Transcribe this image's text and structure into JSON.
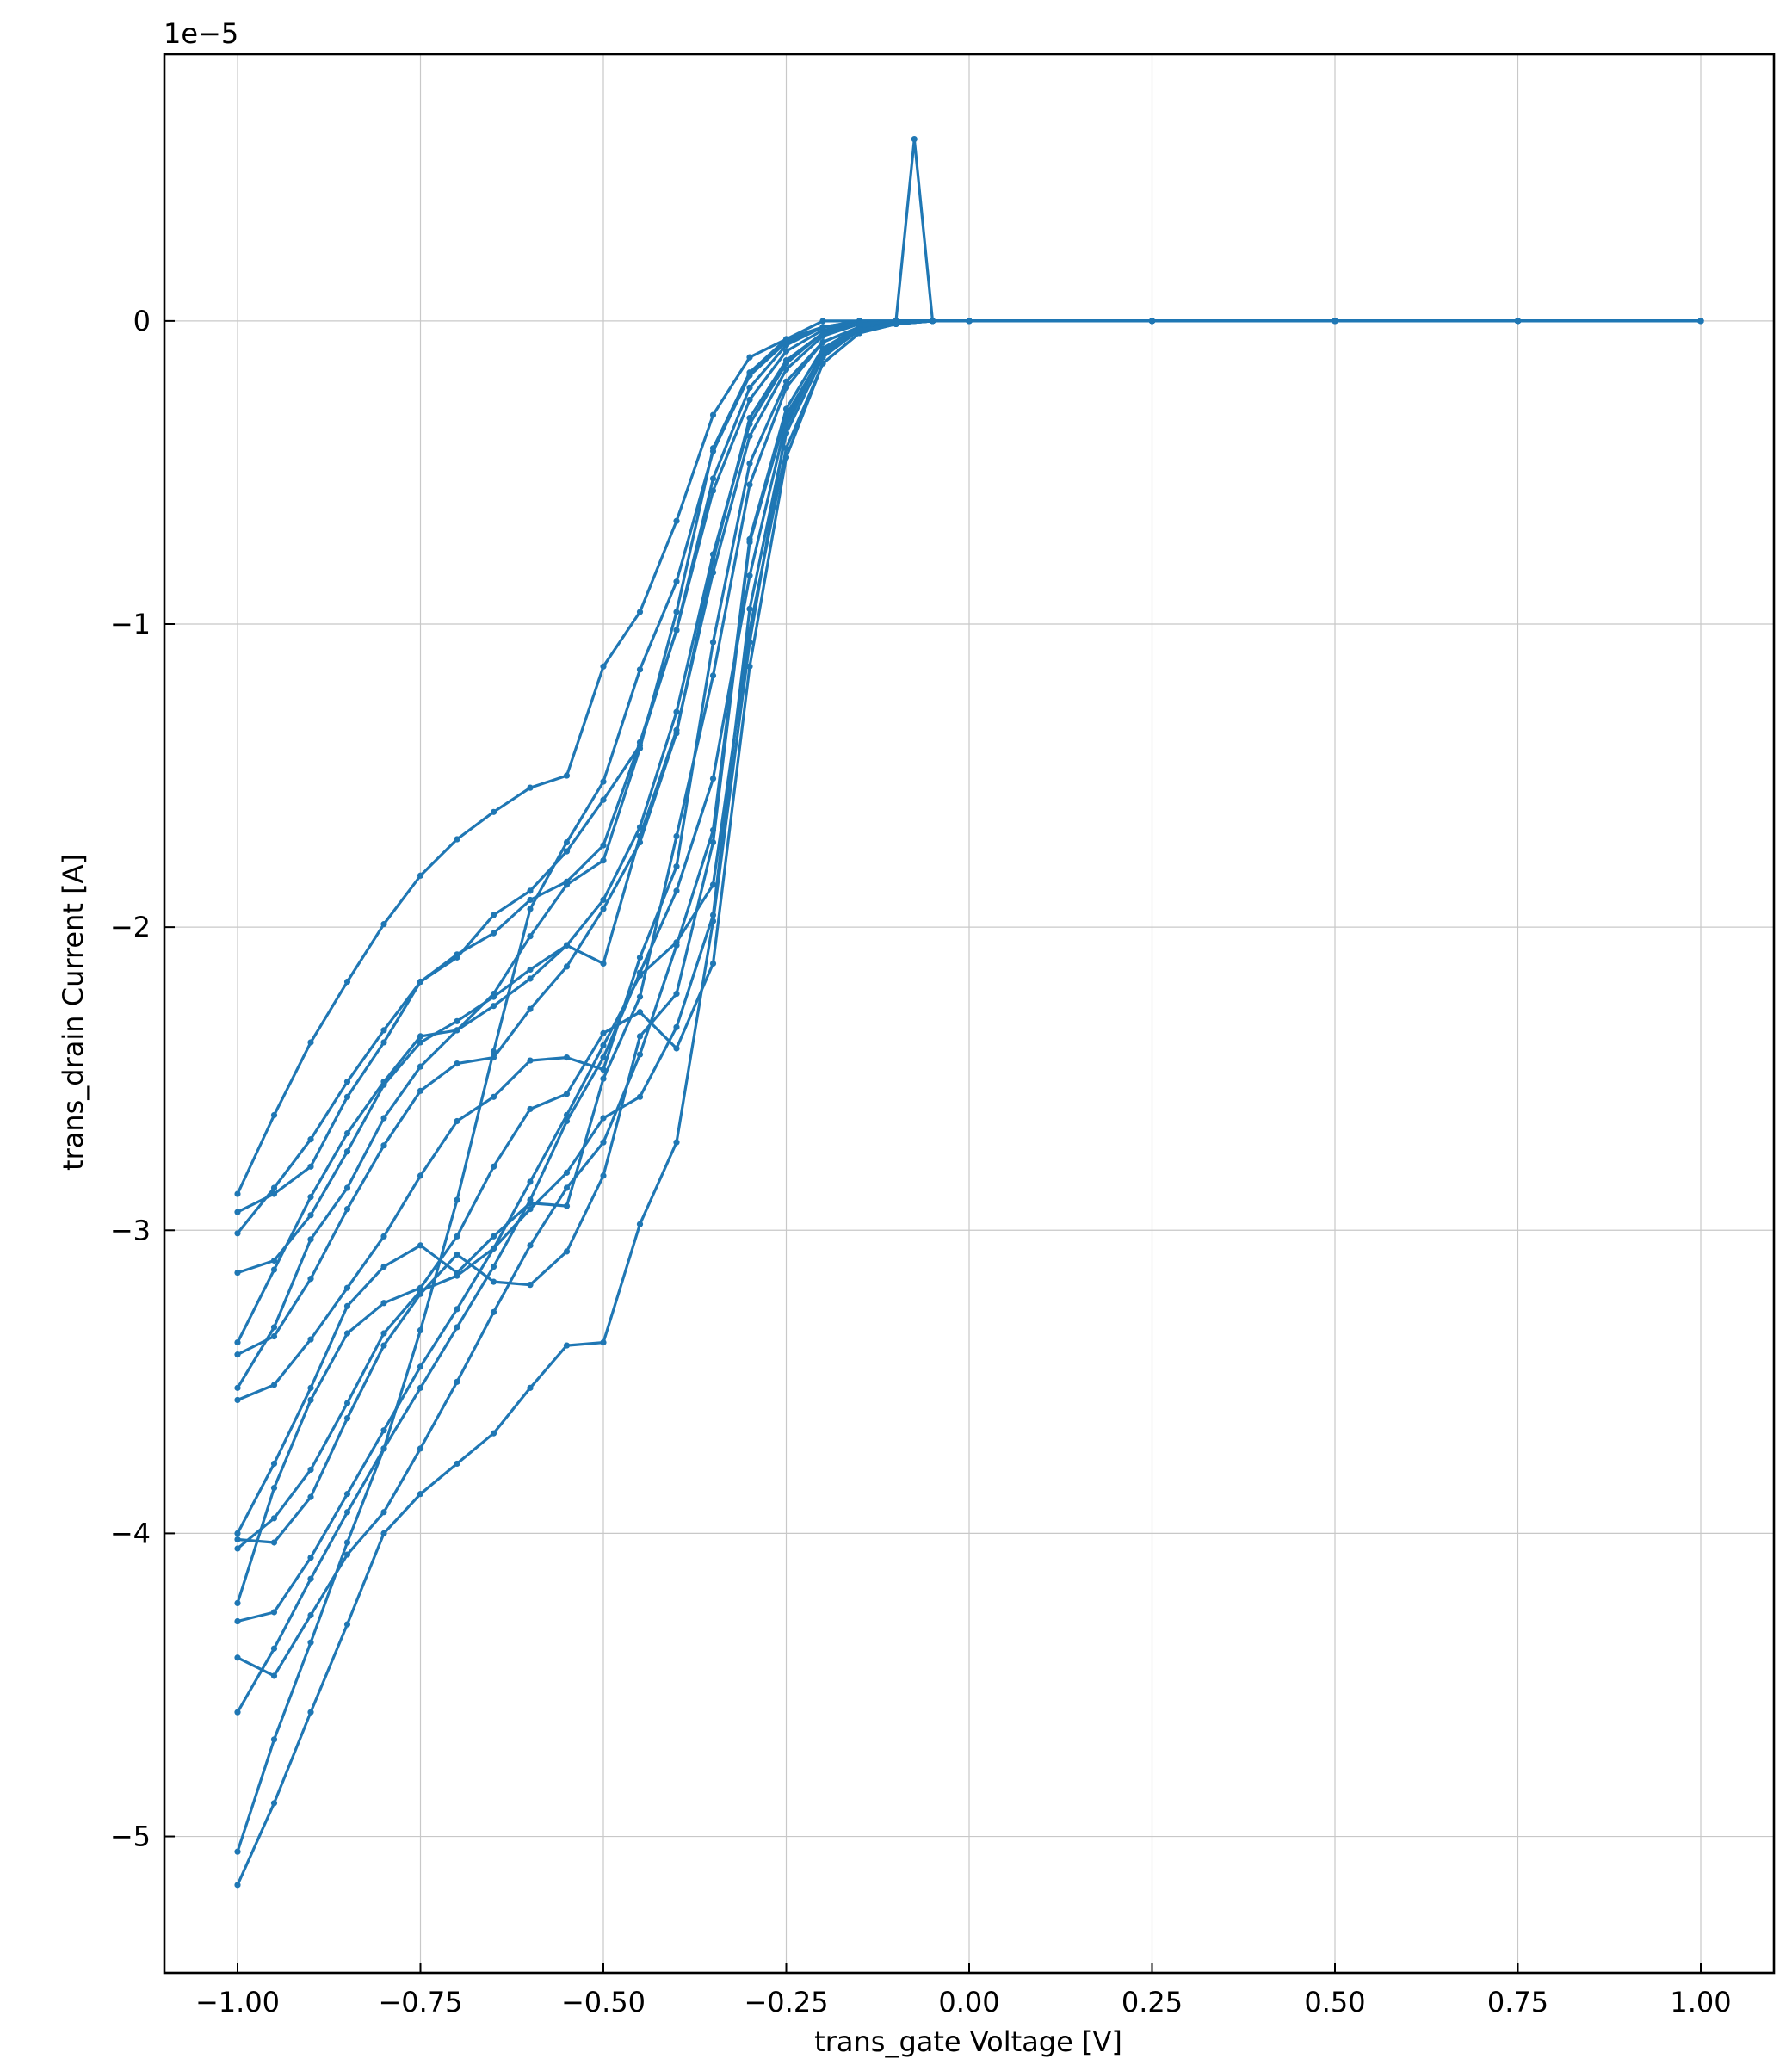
{
  "chart_data": {
    "type": "line",
    "title": "",
    "xlabel": "trans_gate Voltage [V]",
    "ylabel": "trans_drain Current [A]",
    "y_scale_label": "1e−5",
    "xlim": [
      -1.1,
      1.1
    ],
    "ylim": [
      -5.45,
      0.88
    ],
    "grid": true,
    "color": "#1f77b4",
    "marker": "dot",
    "x_ticks": [
      -1.0,
      -0.75,
      -0.5,
      -0.25,
      0.0,
      0.25,
      0.5,
      0.75,
      1.0
    ],
    "x_tick_labels": [
      "−1.00",
      "−0.75",
      "−0.50",
      "−0.25",
      "0.00",
      "0.25",
      "0.50",
      "0.75",
      "1.00"
    ],
    "y_ticks": [
      0,
      -1,
      -2,
      -3,
      -4,
      -5
    ],
    "y_tick_labels": [
      "0",
      "−1",
      "−2",
      "−3",
      "−4",
      "−5"
    ],
    "series": [
      {
        "name": "",
        "x": [
          -1.0,
          -0.95,
          -0.9,
          -0.85,
          -0.8,
          -0.75,
          -0.7,
          -0.65,
          -0.6,
          -0.55,
          -0.5,
          -0.45,
          -0.4,
          -0.35,
          -0.3,
          -0.25,
          -0.2,
          -0.15,
          -0.1,
          -0.075,
          -0.05,
          0.0,
          0.25,
          0.5,
          0.75,
          1.0
        ],
        "y": [
          -2.88,
          -2.62,
          -2.38,
          -2.18,
          -1.99,
          -1.83,
          -1.71,
          -1.62,
          -1.54,
          -1.5,
          -1.14,
          -0.96,
          -0.66,
          -0.31,
          -0.12,
          -0.06,
          0.0,
          0.0,
          0.0,
          0.6,
          0.0,
          0.0,
          0.0,
          0.0,
          0.0,
          0.0
        ]
      },
      {
        "name": "",
        "x": [
          -1.0,
          -0.95,
          -0.9,
          -0.85,
          -0.8,
          -0.75,
          -0.7,
          -0.65,
          -0.6,
          -0.55,
          -0.5,
          -0.45,
          -0.4,
          -0.35,
          -0.3,
          -0.25,
          -0.2,
          -0.15,
          -0.1,
          -0.05,
          0.0,
          0.25,
          0.5,
          0.75,
          1.0
        ],
        "y": [
          -2.94,
          -2.88,
          -2.79,
          -2.56,
          -2.38,
          -2.18,
          -2.09,
          -2.02,
          -1.91,
          -1.85,
          -1.73,
          -1.39,
          -1.02,
          -0.52,
          -0.22,
          -0.08,
          -0.02,
          0.0,
          0.0,
          0.0,
          0.0,
          0.0,
          0.0,
          0.0,
          0.0
        ]
      },
      {
        "name": "",
        "x": [
          -1.0,
          -0.95,
          -0.9,
          -0.85,
          -0.8,
          -0.75,
          -0.7,
          -0.65,
          -0.6,
          -0.55,
          -0.5,
          -0.45,
          -0.4,
          -0.35,
          -0.3,
          -0.25,
          -0.2,
          -0.15,
          -0.1,
          -0.05,
          0.0,
          0.25,
          0.5,
          0.75,
          1.0
        ],
        "y": [
          -3.01,
          -2.86,
          -2.7,
          -2.51,
          -2.34,
          -2.18,
          -2.1,
          -1.96,
          -1.88,
          -1.75,
          -1.58,
          -1.4,
          -1.02,
          -0.56,
          -0.26,
          -0.1,
          -0.03,
          -0.01,
          0.0,
          0.0,
          0.0,
          0.0,
          0.0,
          0.0,
          0.0
        ]
      },
      {
        "name": "",
        "x": [
          -1.0,
          -0.95,
          -0.9,
          -0.85,
          -0.8,
          -0.75,
          -0.7,
          -0.65,
          -0.6,
          -0.55,
          -0.5,
          -0.45,
          -0.4,
          -0.35,
          -0.3,
          -0.25,
          -0.2,
          -0.15,
          -0.1,
          -0.05,
          0.0,
          0.25,
          0.5,
          0.75,
          1.0
        ],
        "y": [
          -3.14,
          -3.1,
          -2.95,
          -2.74,
          -2.52,
          -2.38,
          -2.31,
          -2.23,
          -2.14,
          -2.06,
          -1.91,
          -1.67,
          -1.29,
          -0.77,
          -0.34,
          -0.14,
          -0.04,
          -0.01,
          0.0,
          0.0,
          0.0,
          0.0,
          0.0,
          0.0,
          0.0
        ]
      },
      {
        "name": "",
        "x": [
          -1.0,
          -0.95,
          -0.9,
          -0.85,
          -0.8,
          -0.75,
          -0.7,
          -0.65,
          -0.6,
          -0.55,
          -0.5,
          -0.45,
          -0.4,
          -0.35,
          -0.3,
          -0.25,
          -0.2,
          -0.15,
          -0.1,
          -0.05,
          0.0,
          0.25,
          0.5,
          0.75,
          1.0
        ],
        "y": [
          -3.37,
          -3.13,
          -2.89,
          -2.68,
          -2.51,
          -2.36,
          -2.34,
          -2.22,
          -2.03,
          -1.86,
          -1.78,
          -1.41,
          -0.96,
          -0.42,
          -0.17,
          -0.06,
          -0.02,
          0.0,
          0.0,
          0.0,
          0.0,
          0.0,
          0.0,
          0.0,
          0.0
        ]
      },
      {
        "name": "",
        "x": [
          -1.0,
          -0.95,
          -0.9,
          -0.85,
          -0.8,
          -0.75,
          -0.7,
          -0.65,
          -0.6,
          -0.55,
          -0.5,
          -0.45,
          -0.4,
          -0.35,
          -0.3,
          -0.25,
          -0.2,
          -0.15,
          -0.1,
          -0.05,
          0.0,
          0.25,
          0.5,
          0.75,
          1.0
        ],
        "y": [
          -3.41,
          -3.35,
          -3.16,
          -2.93,
          -2.72,
          -2.54,
          -2.45,
          -2.43,
          -2.27,
          -2.13,
          -1.94,
          -1.72,
          -1.36,
          -0.79,
          -0.32,
          -0.13,
          -0.04,
          -0.01,
          0.0,
          0.0,
          0.0,
          0.0,
          0.0,
          0.0,
          0.0
        ]
      },
      {
        "name": "",
        "x": [
          -1.0,
          -0.95,
          -0.9,
          -0.85,
          -0.8,
          -0.75,
          -0.7,
          -0.65,
          -0.6,
          -0.55,
          -0.5,
          -0.45,
          -0.4,
          -0.35,
          -0.3,
          -0.25,
          -0.2,
          -0.15,
          -0.1,
          -0.05,
          0.0,
          0.25,
          0.5,
          0.75,
          1.0
        ],
        "y": [
          -3.52,
          -3.32,
          -3.03,
          -2.86,
          -2.63,
          -2.46,
          -2.34,
          -2.26,
          -2.17,
          -2.06,
          -2.12,
          -1.7,
          -1.35,
          -0.83,
          -0.38,
          -0.16,
          -0.05,
          -0.01,
          0.0,
          0.0,
          0.0,
          0.0,
          0.0,
          0.0,
          0.0
        ]
      },
      {
        "name": "",
        "x": [
          -1.0,
          -0.95,
          -0.9,
          -0.85,
          -0.8,
          -0.75,
          -0.7,
          -0.65,
          -0.6,
          -0.55,
          -0.5,
          -0.45,
          -0.4,
          -0.35,
          -0.3,
          -0.25,
          -0.2,
          -0.15,
          -0.1,
          -0.05,
          0.0,
          0.25,
          0.5,
          0.75,
          1.0
        ],
        "y": [
          -3.56,
          -3.51,
          -3.36,
          -3.19,
          -3.02,
          -2.82,
          -2.64,
          -2.56,
          -2.44,
          -2.43,
          -2.47,
          -2.1,
          -1.8,
          -1.06,
          -0.47,
          -0.2,
          -0.07,
          -0.02,
          0.0,
          0.0,
          0.0,
          0.0,
          0.0,
          0.0,
          0.0
        ]
      },
      {
        "name": "",
        "x": [
          -1.0,
          -0.95,
          -0.9,
          -0.85,
          -0.8,
          -0.75,
          -0.7,
          -0.65,
          -0.6,
          -0.55,
          -0.5,
          -0.45,
          -0.4,
          -0.35,
          -0.3,
          -0.25,
          -0.2,
          -0.15,
          -0.1,
          -0.05,
          0.0,
          0.25,
          0.5,
          0.75,
          1.0
        ],
        "y": [
          -4.0,
          -3.77,
          -3.52,
          -3.25,
          -3.12,
          -3.05,
          -3.14,
          -3.02,
          -2.91,
          -2.92,
          -2.5,
          -2.23,
          -1.7,
          -1.17,
          -0.54,
          -0.22,
          -0.07,
          -0.02,
          0.0,
          0.0,
          0.0,
          0.0,
          0.0,
          0.0,
          0.0
        ]
      },
      {
        "name": "",
        "x": [
          -1.0,
          -0.95,
          -0.9,
          -0.85,
          -0.8,
          -0.75,
          -0.7,
          -0.65,
          -0.6,
          -0.55,
          -0.5,
          -0.45,
          -0.4,
          -0.35,
          -0.3,
          -0.25,
          -0.2,
          -0.15,
          -0.1,
          -0.05,
          0.0,
          0.25,
          0.5,
          0.75,
          1.0
        ],
        "y": [
          -4.02,
          -4.03,
          -3.88,
          -3.62,
          -3.38,
          -3.21,
          -3.08,
          -3.17,
          -3.18,
          -3.07,
          -2.82,
          -2.36,
          -2.22,
          -1.72,
          -0.73,
          -0.31,
          -0.11,
          -0.03,
          -0.01,
          0.0,
          0.0,
          0.0,
          0.0,
          0.0,
          0.0
        ]
      },
      {
        "name": "",
        "x": [
          -1.0,
          -0.95,
          -0.9,
          -0.85,
          -0.8,
          -0.75,
          -0.7,
          -0.65,
          -0.6,
          -0.55,
          -0.5,
          -0.45,
          -0.4,
          -0.35,
          -0.3,
          -0.25,
          -0.2,
          -0.15,
          -0.1,
          -0.05,
          0.0,
          0.25,
          0.5,
          0.75,
          1.0
        ],
        "y": [
          -4.05,
          -3.95,
          -3.79,
          -3.57,
          -3.34,
          -3.2,
          -3.15,
          -3.06,
          -2.93,
          -2.81,
          -2.63,
          -2.56,
          -2.33,
          -1.96,
          -0.95,
          -0.37,
          -0.12,
          -0.03,
          -0.01,
          0.0,
          0.0,
          0.0,
          0.0,
          0.0,
          0.0
        ]
      },
      {
        "name": "",
        "x": [
          -1.0,
          -0.95,
          -0.9,
          -0.85,
          -0.8,
          -0.75,
          -0.7,
          -0.65,
          -0.6,
          -0.55,
          -0.5,
          -0.45,
          -0.4,
          -0.35,
          -0.3,
          -0.25,
          -0.2,
          -0.15,
          -0.1,
          -0.05,
          0.0,
          0.25,
          0.5,
          0.75,
          1.0
        ],
        "y": [
          -4.23,
          -3.85,
          -3.56,
          -3.34,
          -3.24,
          -3.19,
          -3.02,
          -2.79,
          -2.6,
          -2.55,
          -2.35,
          -2.28,
          -2.4,
          -2.12,
          -1.14,
          -0.45,
          -0.14,
          -0.04,
          -0.01,
          0.0,
          0.0,
          0.0,
          0.0,
          0.0,
          0.0
        ]
      },
      {
        "name": "",
        "x": [
          -1.0,
          -0.95,
          -0.9,
          -0.85,
          -0.8,
          -0.75,
          -0.7,
          -0.65,
          -0.6,
          -0.55,
          -0.5,
          -0.45,
          -0.4,
          -0.35,
          -0.3,
          -0.25,
          -0.2,
          -0.15,
          -0.1,
          -0.05,
          0.0,
          0.25,
          0.5,
          0.75,
          1.0
        ],
        "y": [
          -4.29,
          -4.26,
          -4.08,
          -3.87,
          -3.66,
          -3.45,
          -3.26,
          -3.06,
          -2.84,
          -2.62,
          -2.39,
          -2.16,
          -2.05,
          -1.86,
          -1.02,
          -0.42,
          -0.14,
          -0.04,
          -0.01,
          0.0,
          0.0,
          0.0,
          0.0,
          0.0,
          0.0
        ]
      },
      {
        "name": "",
        "x": [
          -1.0,
          -0.95,
          -0.9,
          -0.85,
          -0.8,
          -0.75,
          -0.7,
          -0.65,
          -0.6,
          -0.55,
          -0.5,
          -0.45,
          -0.4,
          -0.35,
          -0.3,
          -0.25,
          -0.2,
          -0.15,
          -0.1,
          -0.05,
          0.0,
          0.25,
          0.5,
          0.75,
          1.0
        ],
        "y": [
          -4.41,
          -4.47,
          -4.27,
          -4.07,
          -3.93,
          -3.72,
          -3.5,
          -3.27,
          -3.05,
          -2.86,
          -2.71,
          -2.42,
          -2.06,
          -1.68,
          -0.72,
          -0.29,
          -0.09,
          -0.02,
          0.0,
          0.0,
          0.0,
          0.0,
          0.0,
          0.0,
          0.0
        ]
      },
      {
        "name": "",
        "x": [
          -1.0,
          -0.95,
          -0.9,
          -0.85,
          -0.8,
          -0.75,
          -0.7,
          -0.65,
          -0.6,
          -0.55,
          -0.5,
          -0.45,
          -0.4,
          -0.35,
          -0.3,
          -0.25,
          -0.2,
          -0.15,
          -0.1,
          -0.05,
          0.0,
          0.25,
          0.5,
          0.75,
          1.0
        ],
        "y": [
          -4.59,
          -4.38,
          -4.15,
          -3.93,
          -3.72,
          -3.52,
          -3.32,
          -3.12,
          -2.9,
          -2.64,
          -2.43,
          -2.15,
          -1.88,
          -1.51,
          -0.84,
          -0.33,
          -0.1,
          -0.03,
          0.0,
          0.0,
          0.0,
          0.0,
          0.0,
          0.0,
          0.0
        ]
      },
      {
        "name": "",
        "x": [
          -1.0,
          -0.95,
          -0.9,
          -0.85,
          -0.8,
          -0.75,
          -0.7,
          -0.65,
          -0.6,
          -0.55,
          -0.5,
          -0.45,
          -0.4,
          -0.35,
          -0.3,
          -0.25,
          -0.2,
          -0.15,
          -0.1,
          -0.05,
          0.0,
          0.25,
          0.5,
          0.75,
          1.0
        ],
        "y": [
          -5.05,
          -4.68,
          -4.36,
          -4.03,
          -3.72,
          -3.33,
          -2.9,
          -2.41,
          -1.94,
          -1.72,
          -1.52,
          -1.15,
          -0.86,
          -0.43,
          -0.18,
          -0.07,
          -0.02,
          -0.01,
          0.0,
          0.0,
          0.0,
          0.0,
          0.0,
          0.0,
          0.0
        ]
      },
      {
        "name": "",
        "x": [
          -1.0,
          -0.95,
          -0.9,
          -0.85,
          -0.8,
          -0.75,
          -0.7,
          -0.65,
          -0.6,
          -0.55,
          -0.5,
          -0.45,
          -0.4,
          -0.35,
          -0.3,
          -0.25,
          -0.2,
          -0.15,
          -0.1,
          -0.05,
          0.0,
          0.25,
          0.5,
          0.75,
          1.0
        ],
        "y": [
          -5.16,
          -4.89,
          -4.59,
          -4.3,
          -4.0,
          -3.87,
          -3.77,
          -3.67,
          -3.52,
          -3.38,
          -3.37,
          -2.98,
          -2.71,
          -1.98,
          -1.06,
          -0.35,
          -0.1,
          -0.03,
          -0.01,
          0.0,
          0.0,
          0.0,
          0.0,
          0.0,
          0.0
        ]
      }
    ]
  }
}
